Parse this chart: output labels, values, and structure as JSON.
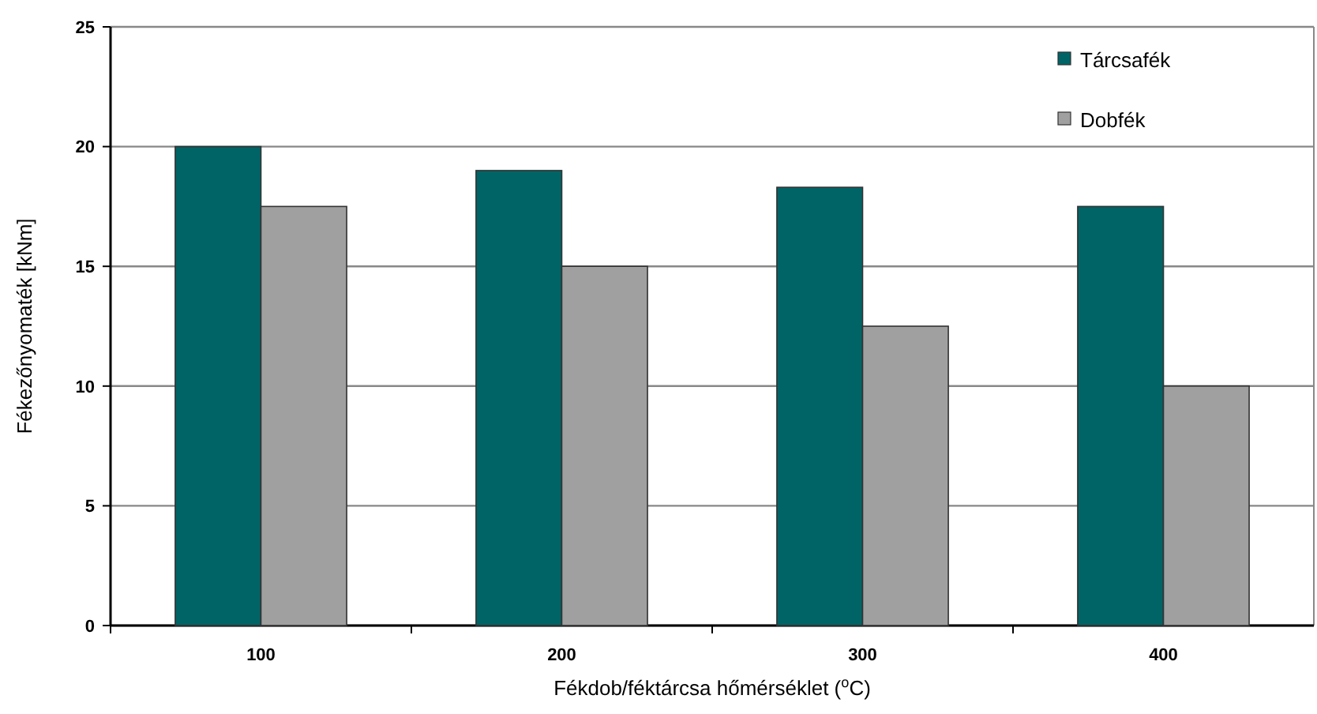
{
  "chart_data": {
    "type": "bar",
    "xlabel": "Fékdob/féktárcsa hőmérséklet ($^{o}$C)",
    "ylabel": "Fékezőnyomaték [kNm]",
    "categories": [
      "100",
      "200",
      "300",
      "400"
    ],
    "series": [
      {
        "name": "Tárcsafék",
        "color": "#006466",
        "values": [
          20,
          19,
          18.3,
          17.5
        ]
      },
      {
        "name": "Dobfék",
        "color": "#a0a0a0",
        "values": [
          17.5,
          15,
          12.5,
          10
        ]
      }
    ],
    "ylim": [
      0,
      25
    ],
    "yticks": [
      0,
      5,
      10,
      15,
      20,
      25
    ],
    "grid": "y",
    "legend": "top right"
  }
}
